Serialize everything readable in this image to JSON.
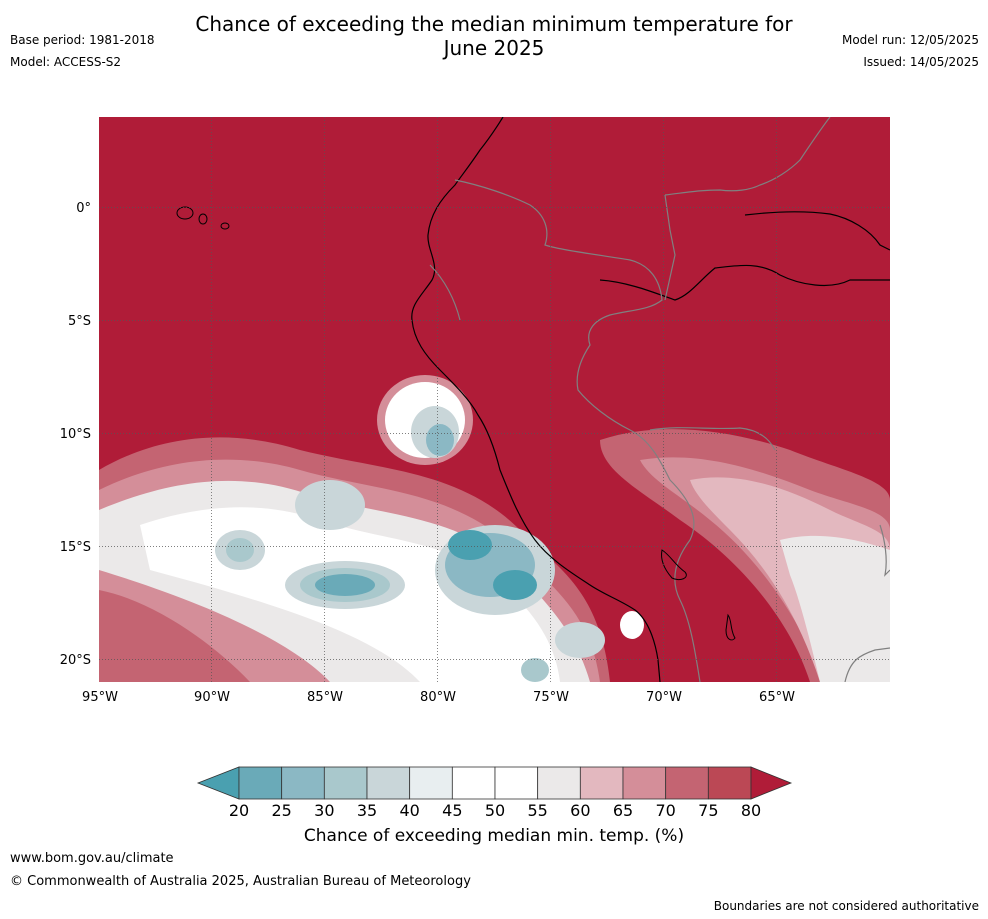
{
  "title": {
    "line1": "Chance of exceeding the median minimum temperature for",
    "line2": "June 2025"
  },
  "meta_left": {
    "base_period": "Base period: 1981-2018",
    "model": "Model: ACCESS-S2"
  },
  "meta_right": {
    "model_run": "Model run: 12/05/2025",
    "issued": "Issued: 14/05/2025"
  },
  "map": {
    "lon_ticks": [
      "95°W",
      "90°W",
      "85°W",
      "80°W",
      "75°W",
      "70°W",
      "65°W"
    ],
    "lat_ticks": [
      "0°",
      "5°S",
      "10°S",
      "15°S",
      "20°S"
    ],
    "background_color": "#b01c38",
    "coastline_color": "#000000",
    "border_color": "#808080"
  },
  "colorbar": {
    "labels": [
      "20",
      "25",
      "30",
      "35",
      "40",
      "45",
      "50",
      "55",
      "60",
      "65",
      "70",
      "75",
      "80"
    ],
    "under_color": "#4aa0b0",
    "over_color": "#b01c38",
    "colors": [
      "#6aaab8",
      "#8bb8c4",
      "#a9c8cc",
      "#c9d6d9",
      "#e8eef0",
      "#ffffff",
      "#ffffff",
      "#ebe9e9",
      "#e3b8bf",
      "#d48e99",
      "#c46472",
      "#bb4855"
    ],
    "title": "Chance of exceeding median min. temp. (%)"
  },
  "footer": {
    "url": "www.bom.gov.au/climate",
    "copyright": "© Commonwealth of Australia 2025, Australian Bureau of Meteorology",
    "note": "Boundaries are not considered authoritative"
  }
}
